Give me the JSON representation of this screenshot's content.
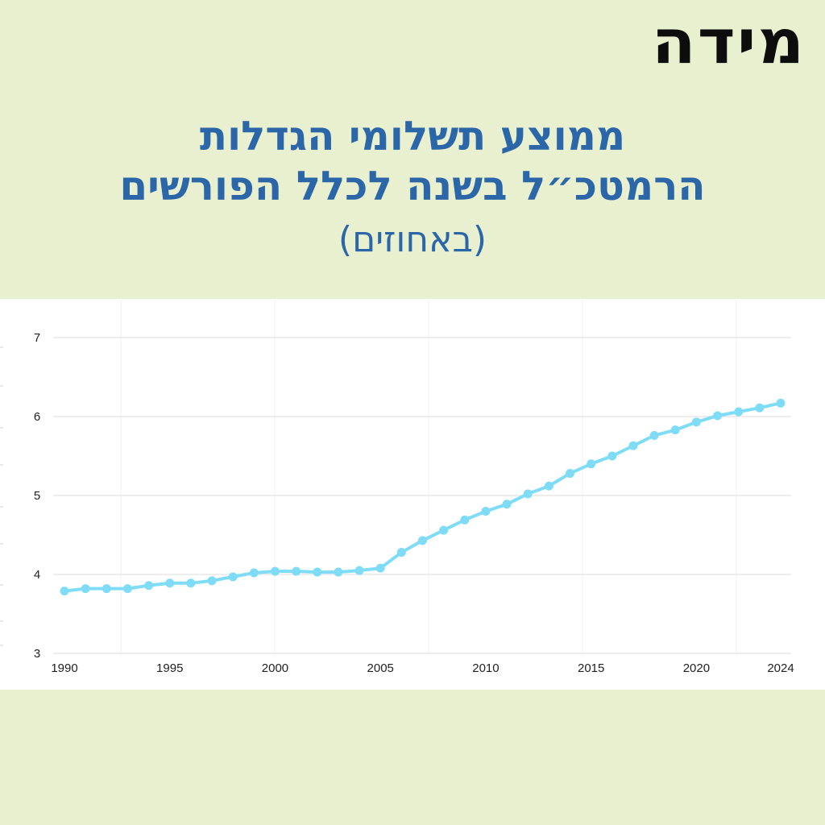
{
  "logo": {
    "text": "מידה"
  },
  "title": {
    "line1": "ממוצע תשלומי הגדלות",
    "line2": "הרמטכ״ל בשנה לכלל הפורשים",
    "subtitle": "(באחוזים)"
  },
  "colors": {
    "background": "#e8f0d0",
    "title": "#2a66a8",
    "series": "#7fdcf7",
    "grid": "#e2e2e2"
  },
  "chart_data": {
    "type": "line",
    "title": "ממוצע תשלומי הגדלות הרמטכ״ל בשנה לכלל הפורשים",
    "xlabel": "",
    "ylabel": "",
    "xlim": [
      1990,
      2024
    ],
    "ylim": [
      3,
      7
    ],
    "yticks": [
      3,
      4,
      5,
      6,
      7
    ],
    "xticks": [
      1990,
      1995,
      2000,
      2005,
      2010,
      2015,
      2020,
      2024
    ],
    "grid": true,
    "legend": "none",
    "series": [
      {
        "x": [
          1990,
          1991,
          1992,
          1993,
          1994,
          1995,
          1996,
          1997,
          1998,
          1999,
          2000,
          2001,
          2002,
          2003,
          2004,
          2005,
          2006,
          2007,
          2008,
          2009,
          2010,
          2011,
          2012,
          2013,
          2014,
          2015,
          2016,
          2017,
          2018,
          2019,
          2020,
          2021,
          2022,
          2023,
          2024
        ],
        "values": [
          3.79,
          3.82,
          3.82,
          3.82,
          3.86,
          3.89,
          3.89,
          3.92,
          3.97,
          4.02,
          4.04,
          4.04,
          4.03,
          4.03,
          4.05,
          4.08,
          4.28,
          4.43,
          4.56,
          4.69,
          4.8,
          4.89,
          5.02,
          5.12,
          5.28,
          5.4,
          5.5,
          5.63,
          5.76,
          5.83,
          5.93,
          6.01,
          6.06,
          6.11,
          6.17
        ]
      }
    ]
  }
}
